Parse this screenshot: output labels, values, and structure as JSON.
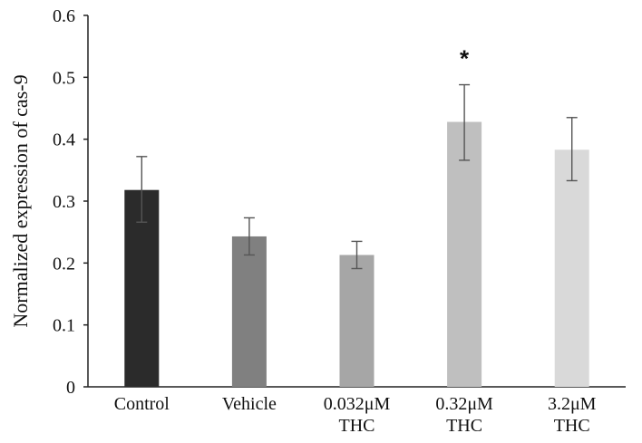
{
  "chart_data": {
    "type": "bar",
    "title": "",
    "xlabel": "",
    "ylabel": "Normalized expression of cas-9",
    "ylim": [
      0,
      0.6
    ],
    "yticks": [
      "0",
      "0.1",
      "0.2",
      "0.3",
      "0.4",
      "0.5",
      "0.6"
    ],
    "grid": false,
    "legend": "none",
    "categories": [
      {
        "line1": "Control",
        "line2": ""
      },
      {
        "line1": "Vehicle",
        "line2": ""
      },
      {
        "line1": "0.032μM",
        "line2": "THC"
      },
      {
        "line1": "0.32μM",
        "line2": "THC"
      },
      {
        "line1": "3.2μM",
        "line2": "THC"
      }
    ],
    "values": [
      0.318,
      0.243,
      0.213,
      0.428,
      0.383
    ],
    "error_low": [
      0.266,
      0.213,
      0.191,
      0.366,
      0.333
    ],
    "error_high": [
      0.372,
      0.273,
      0.235,
      0.488,
      0.435
    ],
    "bar_colors": [
      "#2b2b2b",
      "#808080",
      "#a6a6a6",
      "#bfbfbf",
      "#d9d9d9"
    ],
    "annotations": [
      {
        "category_index": 3,
        "text": "*"
      }
    ]
  }
}
